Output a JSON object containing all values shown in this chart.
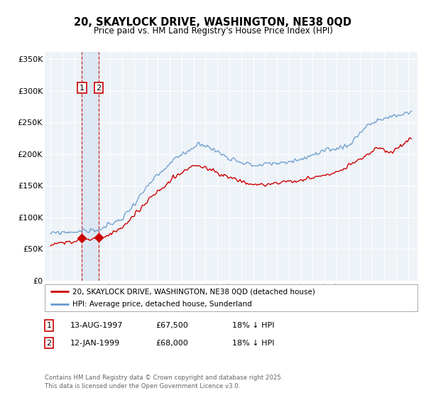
{
  "title": "20, SKAYLOCK DRIVE, WASHINGTON, NE38 0QD",
  "subtitle": "Price paid vs. HM Land Registry's House Price Index (HPI)",
  "ylabel_ticks": [
    "£0",
    "£50K",
    "£100K",
    "£150K",
    "£200K",
    "£250K",
    "£300K",
    "£350K"
  ],
  "ytick_vals": [
    0,
    50000,
    100000,
    150000,
    200000,
    250000,
    300000,
    350000
  ],
  "ylim": [
    0,
    360000
  ],
  "legend_line1": "20, SKAYLOCK DRIVE, WASHINGTON, NE38 0QD (detached house)",
  "legend_line2": "HPI: Average price, detached house, Sunderland",
  "transactions": [
    {
      "num": 1,
      "date": "13-AUG-1997",
      "price": "£67,500",
      "hpi_diff": "18% ↓ HPI",
      "year": 1997.62
    },
    {
      "num": 2,
      "date": "12-JAN-1999",
      "price": "£68,000",
      "hpi_diff": "18% ↓ HPI",
      "year": 1999.04
    }
  ],
  "footer": "Contains HM Land Registry data © Crown copyright and database right 2025.\nThis data is licensed under the Open Government Licence v3.0.",
  "red_color": "#cc0000",
  "blue_color": "#6699cc",
  "blue_shade_color": "#d0e0f0",
  "background_plot": "#eef3f8",
  "price_paid_points": [
    {
      "year": 1997.62,
      "price": 67500
    },
    {
      "year": 1999.04,
      "price": 68000
    }
  ]
}
